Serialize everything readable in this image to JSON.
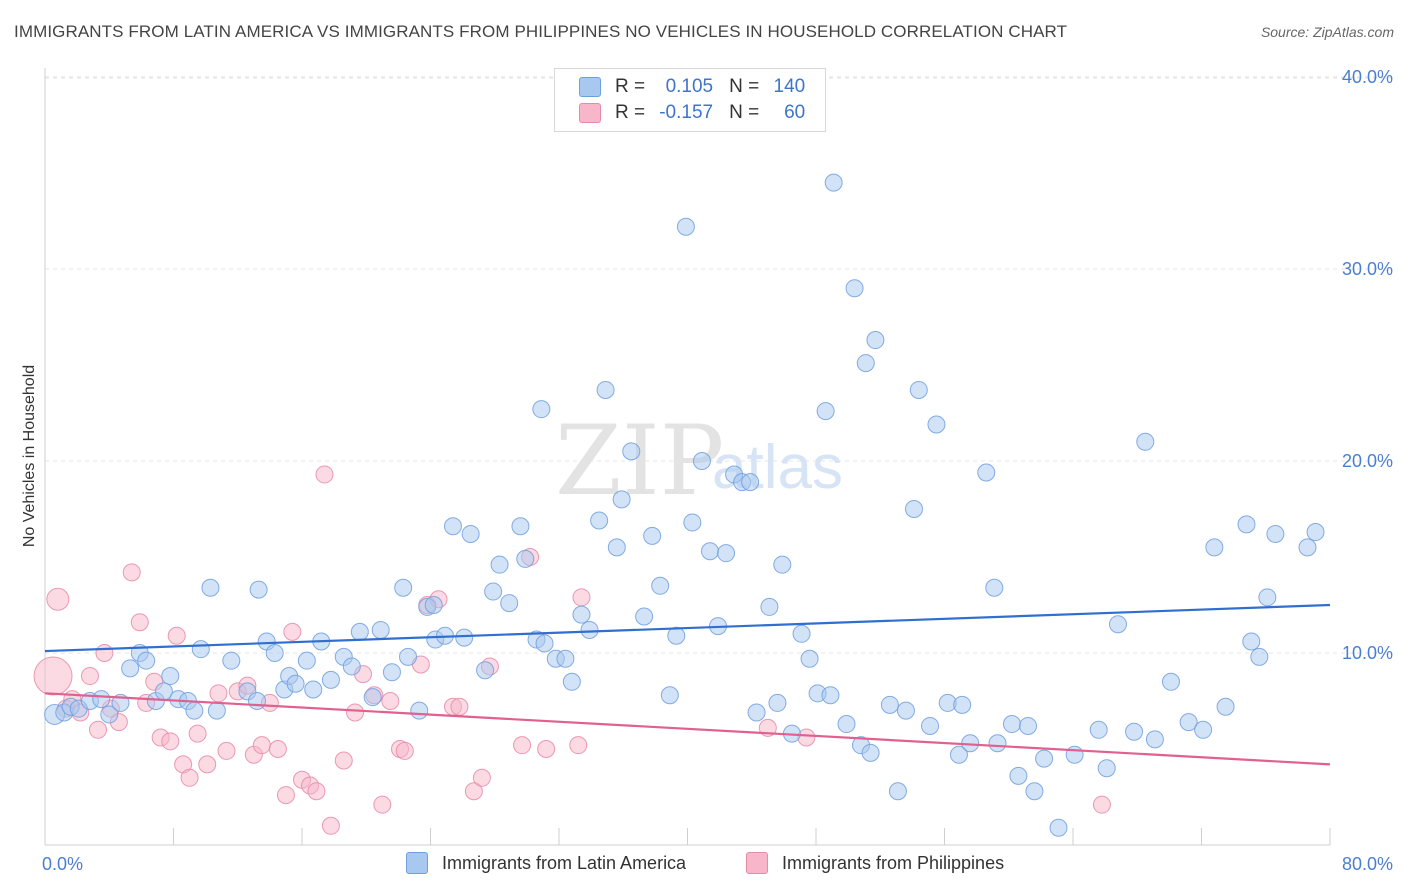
{
  "header": {
    "title": "IMMIGRANTS FROM LATIN AMERICA VS IMMIGRANTS FROM PHILIPPINES NO VEHICLES IN HOUSEHOLD CORRELATION CHART",
    "source": "Source: ZipAtlas.com"
  },
  "legend_top": {
    "rows": [
      {
        "r_label": "R =",
        "r_value": "0.105",
        "n_label": "N =",
        "n_value": "140"
      },
      {
        "r_label": "R =",
        "r_value": "-0.157",
        "n_label": "N =",
        "n_value": "60"
      }
    ]
  },
  "colors": {
    "blue_fill": "#a8c8f0",
    "blue_stroke": "#6f9fde",
    "blue_line": "#2f6fcf",
    "pink_fill": "#f7b6c9",
    "pink_stroke": "#e889a7",
    "pink_line": "#e0608f",
    "tick_text": "#4a7fd0"
  },
  "watermark": {
    "part1": "ZIP",
    "part2": "atlas"
  },
  "chart_data": {
    "type": "scatter",
    "title": "IMMIGRANTS FROM LATIN AMERICA VS IMMIGRANTS FROM PHILIPPINES NO VEHICLES IN HOUSEHOLD CORRELATION CHART",
    "xlabel": "",
    "ylabel": "No Vehicles in Household",
    "xlim": [
      0,
      80
    ],
    "ylim": [
      0,
      42
    ],
    "x_tick_labels": [
      "0.0%",
      "80.0%"
    ],
    "y_ticks": [
      10,
      20,
      30,
      40
    ],
    "y_tick_labels": [
      "10.0%",
      "20.0%",
      "30.0%",
      "40.0%"
    ],
    "grid": true,
    "legend_position": "bottom",
    "series": [
      {
        "name": "Immigrants from Latin America",
        "trend": [
          [
            0,
            10.1
          ],
          [
            80,
            12.5
          ]
        ],
        "points": [
          [
            0.6,
            6.8
          ],
          [
            1.2,
            6.9
          ],
          [
            1.6,
            7.2
          ],
          [
            2.1,
            7.1
          ],
          [
            2.8,
            7.5
          ],
          [
            3.5,
            7.6
          ],
          [
            4.0,
            6.8
          ],
          [
            4.7,
            7.4
          ],
          [
            5.3,
            9.2
          ],
          [
            5.9,
            10.0
          ],
          [
            6.3,
            9.6
          ],
          [
            6.9,
            7.5
          ],
          [
            7.4,
            8.0
          ],
          [
            7.8,
            8.8
          ],
          [
            8.3,
            7.6
          ],
          [
            8.9,
            7.5
          ],
          [
            9.3,
            7.0
          ],
          [
            9.7,
            10.2
          ],
          [
            10.3,
            13.4
          ],
          [
            10.7,
            7.0
          ],
          [
            11.6,
            9.6
          ],
          [
            12.6,
            8.0
          ],
          [
            13.2,
            7.5
          ],
          [
            13.3,
            13.3
          ],
          [
            13.8,
            10.6
          ],
          [
            14.3,
            10.0
          ],
          [
            14.9,
            8.1
          ],
          [
            15.2,
            8.8
          ],
          [
            15.6,
            8.4
          ],
          [
            16.3,
            9.6
          ],
          [
            16.7,
            8.1
          ],
          [
            17.2,
            10.6
          ],
          [
            17.8,
            8.6
          ],
          [
            18.6,
            9.8
          ],
          [
            19.1,
            9.3
          ],
          [
            19.6,
            11.1
          ],
          [
            20.4,
            7.7
          ],
          [
            20.9,
            11.2
          ],
          [
            21.6,
            9.0
          ],
          [
            22.3,
            13.4
          ],
          [
            22.6,
            9.8
          ],
          [
            23.3,
            7.0
          ],
          [
            23.8,
            12.4
          ],
          [
            24.2,
            12.5
          ],
          [
            24.3,
            10.7
          ],
          [
            24.9,
            10.9
          ],
          [
            25.4,
            16.6
          ],
          [
            26.1,
            10.8
          ],
          [
            26.5,
            16.2
          ],
          [
            27.4,
            9.1
          ],
          [
            27.9,
            13.2
          ],
          [
            28.3,
            14.6
          ],
          [
            28.9,
            12.6
          ],
          [
            29.6,
            16.6
          ],
          [
            29.9,
            14.9
          ],
          [
            30.6,
            10.7
          ],
          [
            30.9,
            22.7
          ],
          [
            31.1,
            10.5
          ],
          [
            31.8,
            9.7
          ],
          [
            32.4,
            9.7
          ],
          [
            32.8,
            8.5
          ],
          [
            33.4,
            12.0
          ],
          [
            33.9,
            11.2
          ],
          [
            34.5,
            16.9
          ],
          [
            34.9,
            23.7
          ],
          [
            35.6,
            15.5
          ],
          [
            35.9,
            18.0
          ],
          [
            36.5,
            20.5
          ],
          [
            37.3,
            11.9
          ],
          [
            37.8,
            16.1
          ],
          [
            38.3,
            13.5
          ],
          [
            38.9,
            7.8
          ],
          [
            39.3,
            10.9
          ],
          [
            39.9,
            32.2
          ],
          [
            40.3,
            16.8
          ],
          [
            40.9,
            20.0
          ],
          [
            41.4,
            15.3
          ],
          [
            41.9,
            11.4
          ],
          [
            42.4,
            15.2
          ],
          [
            42.9,
            19.3
          ],
          [
            43.4,
            18.9
          ],
          [
            43.9,
            18.9
          ],
          [
            44.3,
            6.9
          ],
          [
            45.1,
            12.4
          ],
          [
            45.6,
            7.4
          ],
          [
            45.9,
            14.6
          ],
          [
            46.5,
            5.8
          ],
          [
            47.1,
            11.0
          ],
          [
            47.6,
            9.7
          ],
          [
            48.1,
            7.9
          ],
          [
            48.6,
            22.6
          ],
          [
            48.9,
            7.8
          ],
          [
            49.1,
            34.5
          ],
          [
            49.9,
            6.3
          ],
          [
            50.4,
            29.0
          ],
          [
            50.8,
            5.2
          ],
          [
            51.1,
            25.1
          ],
          [
            51.4,
            4.8
          ],
          [
            51.7,
            26.3
          ],
          [
            52.6,
            7.3
          ],
          [
            53.1,
            2.8
          ],
          [
            53.6,
            7.0
          ],
          [
            54.1,
            17.5
          ],
          [
            54.4,
            23.7
          ],
          [
            55.1,
            6.2
          ],
          [
            55.5,
            21.9
          ],
          [
            56.2,
            7.4
          ],
          [
            56.9,
            4.7
          ],
          [
            57.1,
            7.3
          ],
          [
            57.6,
            5.3
          ],
          [
            58.6,
            19.4
          ],
          [
            59.1,
            13.4
          ],
          [
            59.3,
            5.3
          ],
          [
            60.2,
            6.3
          ],
          [
            60.6,
            3.6
          ],
          [
            61.2,
            6.2
          ],
          [
            61.6,
            2.8
          ],
          [
            62.2,
            4.5
          ],
          [
            63.1,
            0.9
          ],
          [
            64.1,
            4.7
          ],
          [
            65.6,
            6.0
          ],
          [
            66.1,
            4.0
          ],
          [
            66.8,
            11.5
          ],
          [
            67.8,
            5.9
          ],
          [
            68.5,
            21.0
          ],
          [
            69.1,
            5.5
          ],
          [
            70.1,
            8.5
          ],
          [
            71.2,
            6.4
          ],
          [
            72.1,
            6.0
          ],
          [
            72.8,
            15.5
          ],
          [
            73.5,
            7.2
          ],
          [
            74.8,
            16.7
          ],
          [
            75.1,
            10.6
          ],
          [
            75.6,
            9.8
          ],
          [
            76.1,
            12.9
          ],
          [
            76.6,
            16.2
          ],
          [
            78.6,
            15.5
          ],
          [
            79.1,
            16.3
          ]
        ]
      },
      {
        "name": "Immigrants from Philippines",
        "trend": [
          [
            0,
            7.9
          ],
          [
            80,
            4.2
          ]
        ],
        "points": [
          [
            0.5,
            8.8
          ],
          [
            0.8,
            12.8
          ],
          [
            1.3,
            7.1
          ],
          [
            1.7,
            7.6
          ],
          [
            2.2,
            6.9
          ],
          [
            2.8,
            8.8
          ],
          [
            3.3,
            6.0
          ],
          [
            3.7,
            10.0
          ],
          [
            4.1,
            7.1
          ],
          [
            4.6,
            6.4
          ],
          [
            5.4,
            14.2
          ],
          [
            5.9,
            11.6
          ],
          [
            6.3,
            7.4
          ],
          [
            6.8,
            8.5
          ],
          [
            7.2,
            5.6
          ],
          [
            7.8,
            5.4
          ],
          [
            8.2,
            10.9
          ],
          [
            8.6,
            4.2
          ],
          [
            9.0,
            3.5
          ],
          [
            9.5,
            5.8
          ],
          [
            10.1,
            4.2
          ],
          [
            10.8,
            7.9
          ],
          [
            11.3,
            4.9
          ],
          [
            12.0,
            8.0
          ],
          [
            12.6,
            8.3
          ],
          [
            13.0,
            4.7
          ],
          [
            13.5,
            5.2
          ],
          [
            14.0,
            7.4
          ],
          [
            14.5,
            5.0
          ],
          [
            15.0,
            2.6
          ],
          [
            15.4,
            11.1
          ],
          [
            16.0,
            3.4
          ],
          [
            16.5,
            3.1
          ],
          [
            16.9,
            2.8
          ],
          [
            17.4,
            19.3
          ],
          [
            17.8,
            1.0
          ],
          [
            18.6,
            4.4
          ],
          [
            19.3,
            6.9
          ],
          [
            19.8,
            8.9
          ],
          [
            20.5,
            7.8
          ],
          [
            21.0,
            2.1
          ],
          [
            21.5,
            7.5
          ],
          [
            22.1,
            5.0
          ],
          [
            22.4,
            4.9
          ],
          [
            23.4,
            9.4
          ],
          [
            23.8,
            12.5
          ],
          [
            24.5,
            12.8
          ],
          [
            25.4,
            7.2
          ],
          [
            25.8,
            7.2
          ],
          [
            26.7,
            2.8
          ],
          [
            27.2,
            3.5
          ],
          [
            27.7,
            9.3
          ],
          [
            29.7,
            5.2
          ],
          [
            30.2,
            15.0
          ],
          [
            31.2,
            5.0
          ],
          [
            33.2,
            5.2
          ],
          [
            33.4,
            12.9
          ],
          [
            45.0,
            6.1
          ],
          [
            47.4,
            5.6
          ],
          [
            65.8,
            2.1
          ]
        ]
      }
    ]
  },
  "bottom_legend": {
    "items": [
      {
        "label": "Immigrants from Latin America"
      },
      {
        "label": "Immigrants from Philippines"
      }
    ]
  }
}
